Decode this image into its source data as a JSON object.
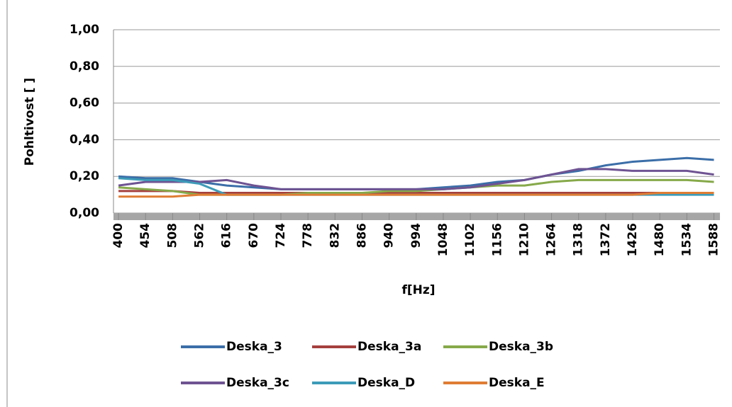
{
  "chart_data": {
    "type": "line",
    "y_label": "Pohltivost  [ ]",
    "x_label": "f[Hz]",
    "x": [
      400,
      454,
      508,
      562,
      616,
      670,
      724,
      778,
      832,
      886,
      940,
      994,
      1048,
      1102,
      1156,
      1210,
      1264,
      1318,
      1372,
      1426,
      1480,
      1534,
      1588
    ],
    "xlim": [
      390,
      1600
    ],
    "xticks": [
      400,
      454,
      508,
      562,
      616,
      670,
      724,
      778,
      832,
      886,
      940,
      994,
      1048,
      1102,
      1156,
      1210,
      1264,
      1318,
      1372,
      1426,
      1480,
      1534,
      1588
    ],
    "ylim": [
      0,
      1
    ],
    "yticks": [
      {
        "value": 0,
        "label": "0,00"
      },
      {
        "value": 0.2,
        "label": "0,20"
      },
      {
        "value": 0.4,
        "label": "0,40"
      },
      {
        "value": 0.6,
        "label": "0,60"
      },
      {
        "value": 0.8,
        "label": "0,80"
      },
      {
        "value": 1,
        "label": "1,00"
      }
    ],
    "grid": true,
    "series": [
      {
        "name": "Deska_3",
        "color": "#3b6ea8",
        "values": [
          0.2,
          0.19,
          0.19,
          0.17,
          0.15,
          0.14,
          0.13,
          0.13,
          0.13,
          0.13,
          0.13,
          0.13,
          0.14,
          0.15,
          0.17,
          0.18,
          0.21,
          0.23,
          0.26,
          0.28,
          0.29,
          0.3,
          0.29
        ]
      },
      {
        "name": "Deska_3a",
        "color": "#a5403e",
        "values": [
          0.12,
          0.12,
          0.12,
          0.11,
          0.11,
          0.11,
          0.11,
          0.11,
          0.11,
          0.11,
          0.11,
          0.11,
          0.11,
          0.11,
          0.11,
          0.11,
          0.11,
          0.11,
          0.11,
          0.11,
          0.11,
          0.11,
          0.11
        ]
      },
      {
        "name": "Deska_3b",
        "color": "#86a94a",
        "values": [
          0.14,
          0.13,
          0.12,
          0.1,
          0.1,
          0.1,
          0.1,
          0.11,
          0.11,
          0.11,
          0.12,
          0.12,
          0.13,
          0.14,
          0.15,
          0.15,
          0.17,
          0.18,
          0.18,
          0.18,
          0.18,
          0.18,
          0.17
        ]
      },
      {
        "name": "Deska_3c",
        "color": "#6e5392",
        "values": [
          0.15,
          0.17,
          0.17,
          0.17,
          0.18,
          0.15,
          0.13,
          0.13,
          0.13,
          0.13,
          0.13,
          0.13,
          0.13,
          0.14,
          0.16,
          0.18,
          0.21,
          0.24,
          0.24,
          0.23,
          0.23,
          0.23,
          0.21
        ]
      },
      {
        "name": "Deska_D",
        "color": "#3d9bb8",
        "values": [
          0.19,
          0.18,
          0.18,
          0.16,
          0.1,
          0.1,
          0.1,
          0.1,
          0.1,
          0.1,
          0.1,
          0.1,
          0.1,
          0.1,
          0.1,
          0.1,
          0.1,
          0.1,
          0.1,
          0.1,
          0.1,
          0.1,
          0.1
        ]
      },
      {
        "name": "Deska_E",
        "color": "#e07d34",
        "values": [
          0.09,
          0.09,
          0.09,
          0.1,
          0.1,
          0.1,
          0.1,
          0.1,
          0.1,
          0.1,
          0.1,
          0.1,
          0.1,
          0.1,
          0.1,
          0.1,
          0.1,
          0.1,
          0.1,
          0.1,
          0.11,
          0.11,
          0.11
        ]
      }
    ]
  }
}
